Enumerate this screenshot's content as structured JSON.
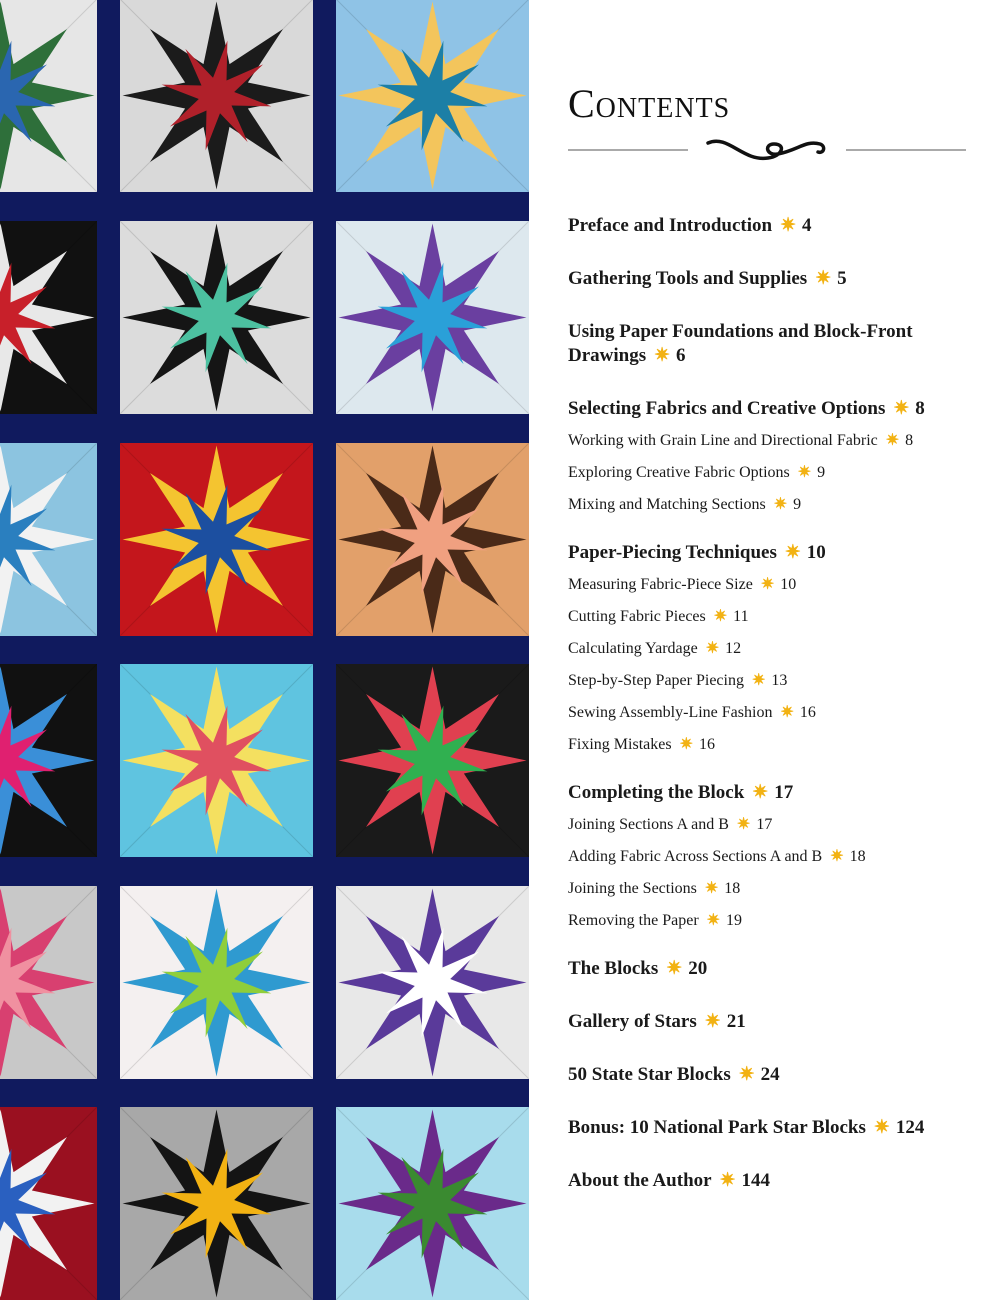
{
  "title": "Contents",
  "accent_color": "#f2b213",
  "bullet_icon": "star-icon",
  "entries": [
    {
      "title": "Preface and Introduction",
      "page": "4",
      "subs": []
    },
    {
      "title": "Gathering Tools and Supplies",
      "page": "5",
      "subs": []
    },
    {
      "title": "Using Paper Foundations and Block-Front Drawings",
      "page": "6",
      "subs": []
    },
    {
      "title": "Selecting Fabrics and Creative Options",
      "page": "8",
      "subs": [
        {
          "title": "Working with Grain Line and Directional Fabric",
          "page": "8"
        },
        {
          "title": "Exploring Creative Fabric Options",
          "page": "9"
        },
        {
          "title": "Mixing and Matching Sections",
          "page": "9"
        }
      ]
    },
    {
      "title": "Paper-Piecing Techniques",
      "page": "10",
      "subs": [
        {
          "title": "Measuring Fabric-Piece Size",
          "page": "10"
        },
        {
          "title": "Cutting Fabric Pieces",
          "page": "11"
        },
        {
          "title": "Calculating Yardage",
          "page": "12"
        },
        {
          "title": "Step-by-Step Paper Piecing",
          "page": "13"
        },
        {
          "title": "Sewing Assembly-Line Fashion",
          "page": "16"
        },
        {
          "title": "Fixing Mistakes",
          "page": "16"
        }
      ]
    },
    {
      "title": "Completing the Block",
      "page": "17",
      "subs": [
        {
          "title": "Joining Sections A and B",
          "page": "17"
        },
        {
          "title": "Adding Fabric Across Sections A and B",
          "page": "18"
        },
        {
          "title": "Joining the Sections",
          "page": "18"
        },
        {
          "title": "Removing the Paper",
          "page": "19"
        }
      ]
    },
    {
      "title": "The Blocks",
      "page": "20",
      "subs": []
    },
    {
      "title": "Gallery of Stars",
      "page": "21",
      "subs": []
    },
    {
      "title": "50 State Star Blocks",
      "page": "24",
      "subs": []
    },
    {
      "title": "Bonus: 10 National Park Star Blocks",
      "page": "124",
      "subs": []
    },
    {
      "title": "About the Author",
      "page": "144",
      "subs": []
    }
  ],
  "quilt_background": "#101a5e",
  "block_palettes": [
    [
      "#e6e6e6",
      "#2e6f3a",
      "#2a66b0"
    ],
    [
      "#d9d9d9",
      "#1b1b1b",
      "#b0202a"
    ],
    [
      "#8fc3e6",
      "#f3c55c",
      "#1c7fa6"
    ],
    [
      "#111111",
      "#e8e8e8",
      "#c8202a"
    ],
    [
      "#dcdcdc",
      "#151515",
      "#4cc0a0"
    ],
    [
      "#dde8ee",
      "#6a3fa0",
      "#2aa0d8"
    ],
    [
      "#8cc4e0",
      "#f2f2f2",
      "#2a7fbf"
    ],
    [
      "#c4161c",
      "#f4c430",
      "#1c4fa0"
    ],
    [
      "#e2a06a",
      "#4a2a18",
      "#f0a080"
    ],
    [
      "#111111",
      "#3a8fd8",
      "#e02070"
    ],
    [
      "#5fc4e0",
      "#f4e060",
      "#e05060"
    ],
    [
      "#1a1a1a",
      "#e04050",
      "#30b050"
    ],
    [
      "#c8c8c8",
      "#d84070",
      "#f090a0"
    ],
    [
      "#f4f0f0",
      "#2f9ad0",
      "#8fce3a"
    ],
    [
      "#e8e8e8",
      "#5a3a9a",
      "#ffffff"
    ],
    [
      "#9a1020",
      "#f2f2f2",
      "#2a60c0"
    ],
    [
      "#a8a8a8",
      "#141414",
      "#f2b213"
    ],
    [
      "#a8dcec",
      "#6a2a8a",
      "#3a8a30"
    ]
  ]
}
